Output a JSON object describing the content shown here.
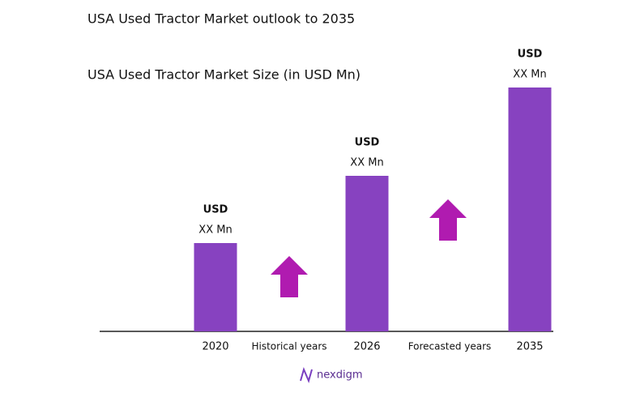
{
  "chart_data": {
    "type": "bar",
    "title": "USA Used Tractor Market outlook to 2035",
    "subtitle": "USA Used Tractor Market Size (in USD Mn)",
    "categories": [
      "2020",
      "2026",
      "2035"
    ],
    "values": [
      109,
      192,
      301
    ],
    "color": "#8742c0",
    "bar_labels": [
      {
        "currency": "USD",
        "amount": "XX Mn"
      },
      {
        "currency": "USD",
        "amount": "XX Mn"
      },
      {
        "currency": "USD",
        "amount": "XX Mn"
      }
    ],
    "period_labels": [
      "Historical years",
      "Forecasted years"
    ],
    "arrow_color": "#b01bb0",
    "logo": "nexdigm"
  }
}
